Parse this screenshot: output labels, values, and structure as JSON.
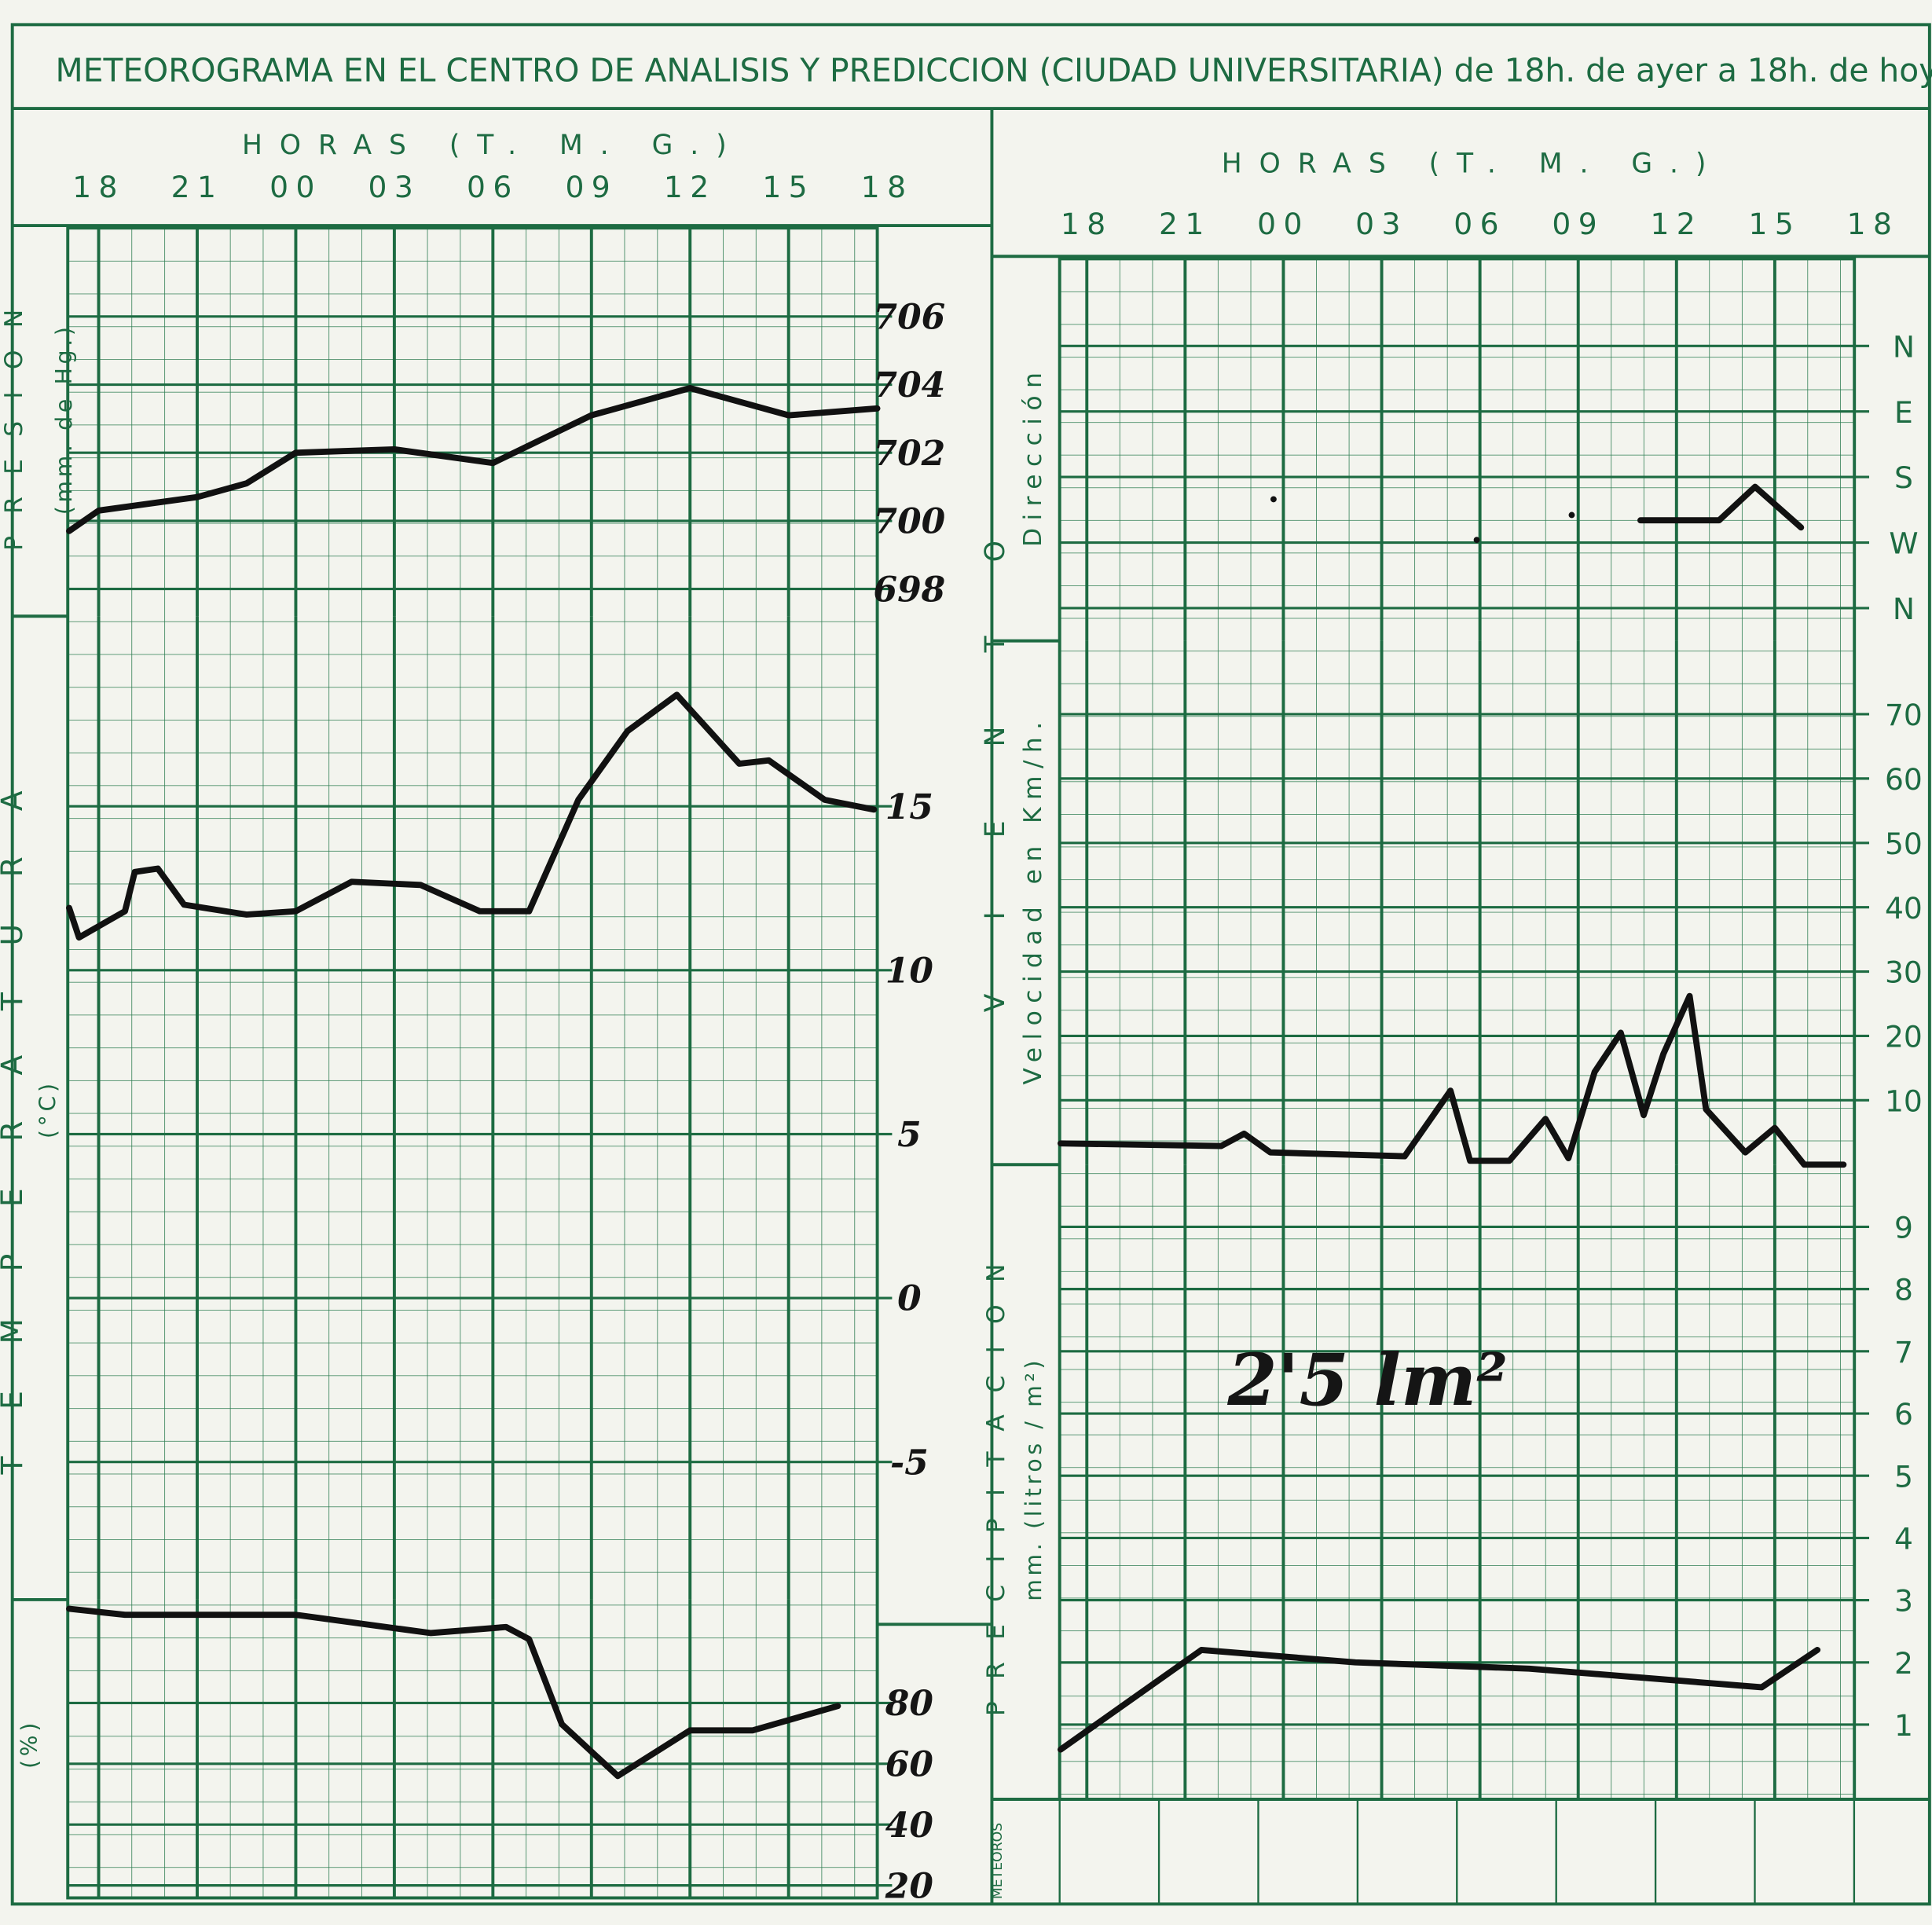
{
  "title": "METEOROGRAMA EN EL CENTRO DE ANALISIS Y PREDICCION (CIUDAD UNIVERSITARIA) de 18h. de ayer a 18h. de hoy.",
  "meteoros_label": "METEOROS",
  "chart_data": [
    {
      "type": "line",
      "x_label": "HORAS (T. M. G.)",
      "y_label": "PRESION",
      "y_unit": "(mm. de Hg.)",
      "xlim": [
        -0.94,
        23.7
      ],
      "xticks": [
        {
          "value": 0,
          "label": "18"
        },
        {
          "value": 3,
          "label": "21"
        },
        {
          "value": 6,
          "label": "00"
        },
        {
          "value": 9,
          "label": "03"
        },
        {
          "value": 12,
          "label": "06"
        },
        {
          "value": 15,
          "label": "09"
        },
        {
          "value": 18,
          "label": "12"
        },
        {
          "value": 21,
          "label": "15"
        },
        {
          "value": 24,
          "label": "18"
        }
      ],
      "ylim": [
        697.2,
        708.6
      ],
      "yticks": [
        698,
        700,
        702,
        704,
        706
      ],
      "x": [
        -0.9,
        0,
        3,
        4.5,
        6,
        9,
        12,
        15,
        18,
        21,
        23.7
      ],
      "series": [
        {
          "color": "#111111",
          "values": [
            699.7,
            700.3,
            700.7,
            701.1,
            702.0,
            702.1,
            701.7,
            703.1,
            703.9,
            703.1,
            703.3
          ]
        }
      ]
    },
    {
      "type": "line",
      "y_label": "TEMPERATURA",
      "y_unit": "(°C)",
      "xlim": [
        -0.94,
        23.7
      ],
      "ylim": [
        -9.2,
        20.8
      ],
      "yticks": [
        -5,
        0,
        5,
        10,
        15
      ],
      "x": [
        -0.9,
        -0.6,
        0.8,
        1.1,
        1.8,
        2.6,
        4.5,
        6,
        7.7,
        9.8,
        11.6,
        13.1,
        14.6,
        16.1,
        17.6,
        19.5,
        20.4,
        22.1,
        23.6
      ],
      "series": [
        {
          "color": "#111111",
          "values": [
            11.9,
            11.0,
            11.8,
            13.0,
            13.1,
            12.0,
            11.7,
            11.8,
            12.7,
            12.6,
            11.8,
            11.8,
            15.2,
            17.3,
            18.4,
            16.3,
            16.4,
            15.2,
            14.9
          ]
        }
      ]
    },
    {
      "type": "line",
      "y_unit": "(%)",
      "xlim": [
        -0.94,
        23.7
      ],
      "ylim": [
        15.9,
        114.0
      ],
      "yticks": [
        20,
        40,
        60,
        80
      ],
      "x": [
        -0.9,
        0.8,
        6,
        10.1,
        12.4,
        13.1,
        14.1,
        15.8,
        18,
        19.9,
        22.5
      ],
      "series": [
        {
          "color": "#111111",
          "values": [
            111,
            109,
            109,
            103,
            105,
            101,
            73,
            56,
            71,
            71,
            79
          ]
        }
      ]
    },
    {
      "type": "line",
      "x_label": "HORAS (T. M. G.)",
      "group_label": "VIENTO",
      "y_label": "Dirección",
      "xlim": [
        -0.83,
        23.43
      ],
      "xticks": [
        {
          "value": 0,
          "label": "18"
        },
        {
          "value": 3,
          "label": "21"
        },
        {
          "value": 6,
          "label": "00"
        },
        {
          "value": 9,
          "label": "03"
        },
        {
          "value": 12,
          "label": "06"
        },
        {
          "value": 15,
          "label": "09"
        },
        {
          "value": 18,
          "label": "12"
        },
        {
          "value": 21,
          "label": "15"
        },
        {
          "value": 24,
          "label": "18"
        }
      ],
      "ylim": [
        -0.5,
        5.33
      ],
      "yticks": [
        {
          "value": 4,
          "label": "N"
        },
        {
          "value": 3,
          "label": "E"
        },
        {
          "value": 2,
          "label": "S"
        },
        {
          "value": 1,
          "label": "W"
        },
        {
          "value": 0,
          "label": "N"
        }
      ],
      "x": [
        5.7,
        null,
        11.9,
        null,
        14.8,
        null,
        16.9,
        19.3,
        20.4,
        21.8
      ],
      "series": [
        {
          "color": "#111111",
          "values": [
            1.66,
            null,
            1.04,
            null,
            1.42,
            null,
            1.34,
            1.34,
            1.85,
            1.23
          ]
        }
      ]
    },
    {
      "type": "line",
      "y_label": "Velocidad en Km/h.",
      "xlim": [
        -0.83,
        23.43
      ],
      "ylim": [
        0,
        81.4
      ],
      "yticks": [
        10,
        20,
        30,
        40,
        50,
        60,
        70
      ],
      "x": [
        -0.8,
        4.1,
        4.8,
        5.6,
        9.7,
        11.1,
        11.7,
        12.9,
        14.0,
        14.7,
        15.5,
        16.3,
        17.0,
        17.6,
        18.4,
        18.9,
        20.1,
        21.0,
        21.9,
        23.1
      ],
      "series": [
        {
          "color": "#111111",
          "values": [
            3.3,
            2.9,
            4.8,
            1.9,
            1.3,
            11.5,
            0.6,
            0.6,
            7.1,
            1.0,
            14.4,
            20.5,
            7.7,
            17.2,
            26.2,
            8.6,
            1.9,
            5.7,
            0,
            0
          ]
        }
      ]
    },
    {
      "type": "line",
      "y_label": "PRECIPITACION",
      "y_unit": "mm. (litros / m²)",
      "annotation": "2'5 lm²",
      "xlim": [
        -0.83,
        23.43
      ],
      "ylim": [
        -0.2,
        10
      ],
      "yticks": [
        1,
        2,
        3,
        4,
        5,
        6,
        7,
        8,
        9
      ],
      "x": [
        -0.8,
        3.5,
        8.2,
        13.5,
        20.6,
        22.3
      ],
      "series": [
        {
          "color": "#111111",
          "values": [
            0.6,
            2.2,
            2.0,
            1.9,
            1.6,
            2.2
          ]
        }
      ]
    }
  ]
}
